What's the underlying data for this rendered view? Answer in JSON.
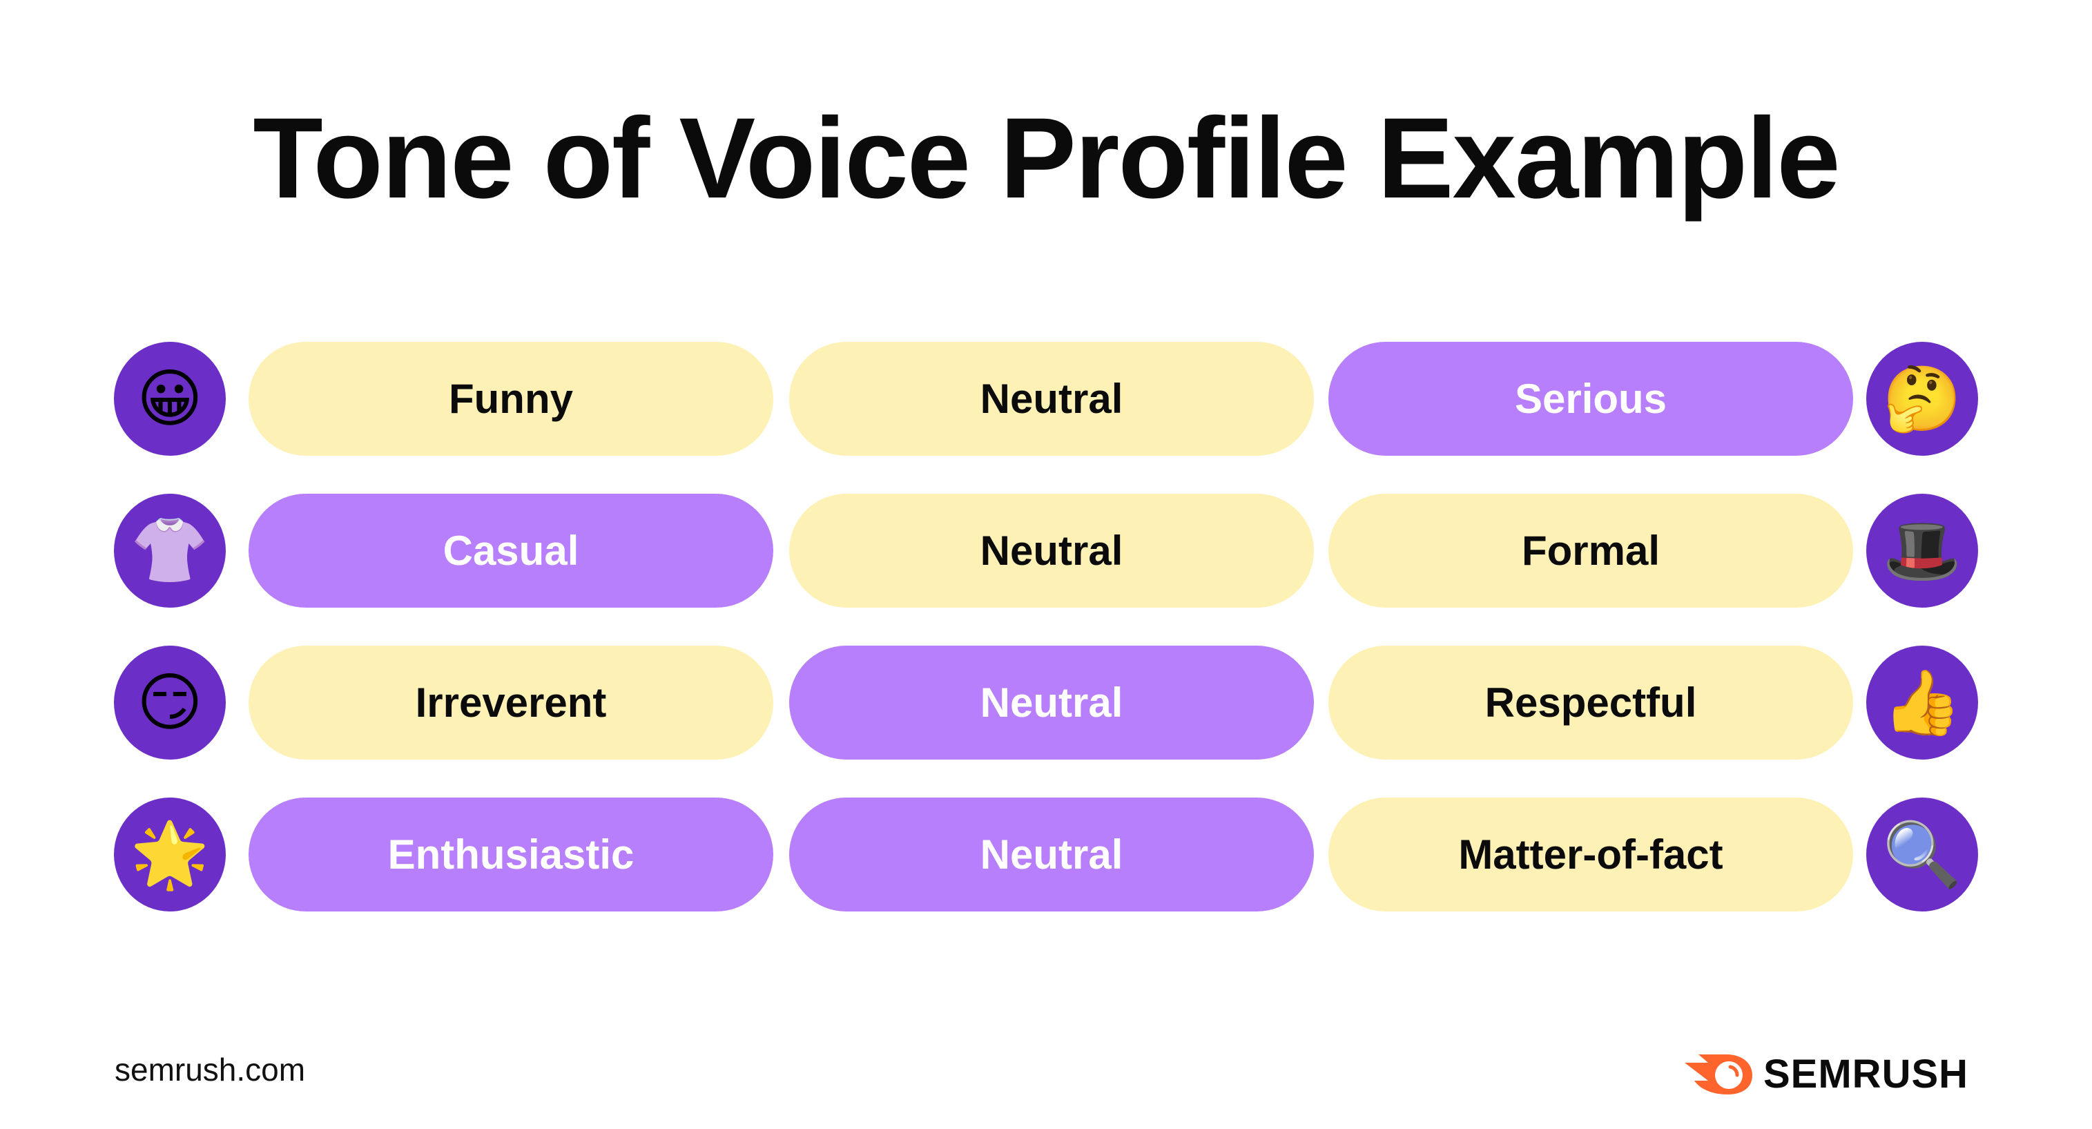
{
  "title": "Tone of Voice Profile Example",
  "colors": {
    "circle": "#6b2fc8",
    "selected": "#b77ffc",
    "unselected": "#fdf1b6",
    "brand": "#ff642d"
  },
  "rows": [
    {
      "left_icon": "grinning-face-icon",
      "left_emoji": "😀",
      "right_icon": "thinking-face-icon",
      "right_emoji": "🤔",
      "options": [
        {
          "label": "Funny",
          "selected": false
        },
        {
          "label": "Neutral",
          "selected": false
        },
        {
          "label": "Serious",
          "selected": true
        }
      ]
    },
    {
      "left_icon": "blouse-icon",
      "left_emoji": "👚",
      "right_icon": "top-hat-icon",
      "right_emoji": "🎩",
      "options": [
        {
          "label": "Casual",
          "selected": true
        },
        {
          "label": "Neutral",
          "selected": false
        },
        {
          "label": "Formal",
          "selected": false
        }
      ]
    },
    {
      "left_icon": "smirking-face-icon",
      "left_emoji": "😏",
      "right_icon": "thumbs-up-icon",
      "right_emoji": "👍",
      "options": [
        {
          "label": "Irreverent",
          "selected": false
        },
        {
          "label": "Neutral",
          "selected": true
        },
        {
          "label": "Respectful",
          "selected": false
        }
      ]
    },
    {
      "left_icon": "glowing-star-icon",
      "left_emoji": "🌟",
      "right_icon": "magnifying-glass-icon",
      "right_emoji": "🔍",
      "options": [
        {
          "label": "Enthusiastic",
          "selected": true
        },
        {
          "label": "Neutral",
          "selected": true
        },
        {
          "label": "Matter-of-fact",
          "selected": false
        }
      ]
    }
  ],
  "footer": {
    "url": "semrush.com",
    "logo_text": "SEMRUSH"
  }
}
